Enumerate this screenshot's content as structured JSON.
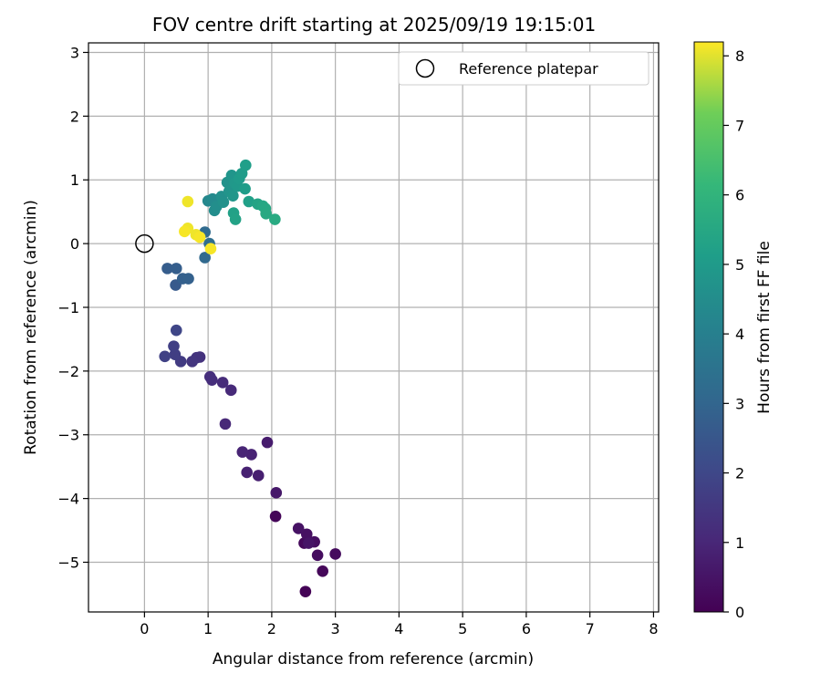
{
  "chart_data": {
    "type": "scatter",
    "title": "FOV centre drift starting at 2025/09/19 19:15:01",
    "xlabel": "Angular distance from reference (arcmin)",
    "ylabel": "Rotation from reference (arcmin)",
    "xlim": [
      -0.88,
      8.08
    ],
    "ylim": [
      -5.78,
      3.15
    ],
    "xticks": [
      0,
      1,
      2,
      3,
      4,
      5,
      6,
      7,
      8
    ],
    "yticks": [
      -5,
      -4,
      -3,
      -2,
      -1,
      0,
      1,
      2,
      3
    ],
    "xtick_labels": [
      "0",
      "1",
      "2",
      "3",
      "4",
      "5",
      "6",
      "7",
      "8"
    ],
    "ytick_labels": [
      "−5",
      "−4",
      "−3",
      "−2",
      "−1",
      "0",
      "1",
      "2",
      "3"
    ],
    "grid": true,
    "colormap": "viridis",
    "colorbar": {
      "label": "Hours from first FF file",
      "range": [
        0,
        8.2
      ],
      "ticks": [
        0,
        1,
        2,
        3,
        4,
        5,
        6,
        7,
        8
      ],
      "tick_labels": [
        "0",
        "1",
        "2",
        "3",
        "4",
        "5",
        "6",
        "7",
        "8"
      ]
    },
    "legend": {
      "placement": "top-right",
      "label": "Reference platepar"
    },
    "reference_point": {
      "x": 0,
      "y": 0
    },
    "points": [
      {
        "x": 2.53,
        "y": -5.46,
        "t": 0.05
      },
      {
        "x": 2.06,
        "y": -4.28,
        "t": 0.1
      },
      {
        "x": 2.8,
        "y": -5.14,
        "t": 0.15
      },
      {
        "x": 2.51,
        "y": -4.7,
        "t": 0.2
      },
      {
        "x": 3.0,
        "y": -4.87,
        "t": 0.25
      },
      {
        "x": 2.72,
        "y": -4.89,
        "t": 0.3
      },
      {
        "x": 2.67,
        "y": -4.68,
        "t": 0.35
      },
      {
        "x": 2.55,
        "y": -4.56,
        "t": 0.4
      },
      {
        "x": 2.42,
        "y": -4.47,
        "t": 0.45
      },
      {
        "x": 2.58,
        "y": -4.7,
        "t": 0.5
      },
      {
        "x": 2.07,
        "y": -3.91,
        "t": 0.6
      },
      {
        "x": 1.93,
        "y": -3.12,
        "t": 0.7
      },
      {
        "x": 1.79,
        "y": -3.64,
        "t": 0.8
      },
      {
        "x": 1.61,
        "y": -3.59,
        "t": 0.85
      },
      {
        "x": 1.68,
        "y": -3.31,
        "t": 0.9
      },
      {
        "x": 1.54,
        "y": -3.27,
        "t": 0.95
      },
      {
        "x": 1.27,
        "y": -2.83,
        "t": 1.05
      },
      {
        "x": 1.36,
        "y": -2.3,
        "t": 1.1
      },
      {
        "x": 1.23,
        "y": -2.18,
        "t": 1.15
      },
      {
        "x": 1.06,
        "y": -2.14,
        "t": 1.2
      },
      {
        "x": 1.03,
        "y": -2.09,
        "t": 1.25
      },
      {
        "x": 0.87,
        "y": -1.78,
        "t": 1.35
      },
      {
        "x": 0.82,
        "y": -1.79,
        "t": 1.4
      },
      {
        "x": 0.75,
        "y": -1.85,
        "t": 1.45
      },
      {
        "x": 0.57,
        "y": -1.85,
        "t": 1.6
      },
      {
        "x": 0.48,
        "y": -1.74,
        "t": 1.7
      },
      {
        "x": 0.46,
        "y": -1.61,
        "t": 1.75
      },
      {
        "x": 0.32,
        "y": -1.77,
        "t": 1.8
      },
      {
        "x": 0.5,
        "y": -1.36,
        "t": 1.95
      },
      {
        "x": 0.49,
        "y": -0.65,
        "t": 2.6
      },
      {
        "x": 0.36,
        "y": -0.39,
        "t": 2.7
      },
      {
        "x": 0.5,
        "y": -0.39,
        "t": 2.75
      },
      {
        "x": 0.6,
        "y": -0.55,
        "t": 2.8
      },
      {
        "x": 0.69,
        "y": -0.55,
        "t": 2.85
      },
      {
        "x": 0.95,
        "y": -0.22,
        "t": 3.1
      },
      {
        "x": 0.95,
        "y": 0.18,
        "t": 3.2
      },
      {
        "x": 1.02,
        "y": 0.0,
        "t": 3.3
      },
      {
        "x": 1.0,
        "y": 0.67,
        "t": 4.3
      },
      {
        "x": 1.07,
        "y": 0.7,
        "t": 4.4
      },
      {
        "x": 1.1,
        "y": 0.52,
        "t": 4.5
      },
      {
        "x": 1.13,
        "y": 0.58,
        "t": 4.55
      },
      {
        "x": 1.21,
        "y": 0.74,
        "t": 4.6
      },
      {
        "x": 1.24,
        "y": 0.65,
        "t": 4.65
      },
      {
        "x": 1.3,
        "y": 0.96,
        "t": 4.7
      },
      {
        "x": 1.33,
        "y": 0.82,
        "t": 4.75
      },
      {
        "x": 1.37,
        "y": 1.07,
        "t": 4.8
      },
      {
        "x": 1.39,
        "y": 0.75,
        "t": 4.85
      },
      {
        "x": 1.42,
        "y": 0.95,
        "t": 4.9
      },
      {
        "x": 1.46,
        "y": 0.9,
        "t": 4.95
      },
      {
        "x": 1.49,
        "y": 1.02,
        "t": 5.0
      },
      {
        "x": 1.53,
        "y": 1.1,
        "t": 5.05
      },
      {
        "x": 1.58,
        "y": 0.86,
        "t": 5.1
      },
      {
        "x": 1.59,
        "y": 1.23,
        "t": 5.15
      },
      {
        "x": 1.64,
        "y": 0.66,
        "t": 5.2
      },
      {
        "x": 1.4,
        "y": 0.48,
        "t": 5.25
      },
      {
        "x": 1.43,
        "y": 0.38,
        "t": 5.3
      },
      {
        "x": 1.78,
        "y": 0.62,
        "t": 5.35
      },
      {
        "x": 1.86,
        "y": 0.59,
        "t": 5.45
      },
      {
        "x": 1.9,
        "y": 0.55,
        "t": 5.5
      },
      {
        "x": 1.91,
        "y": 0.47,
        "t": 5.55
      },
      {
        "x": 2.05,
        "y": 0.38,
        "t": 5.6
      },
      {
        "x": 0.68,
        "y": 0.66,
        "t": 8.1
      },
      {
        "x": 0.68,
        "y": 0.24,
        "t": 8.1
      },
      {
        "x": 0.63,
        "y": 0.19,
        "t": 8.15
      },
      {
        "x": 0.81,
        "y": 0.14,
        "t": 8.1
      },
      {
        "x": 0.87,
        "y": 0.1,
        "t": 8.15
      },
      {
        "x": 1.04,
        "y": -0.08,
        "t": 8.15
      }
    ]
  }
}
